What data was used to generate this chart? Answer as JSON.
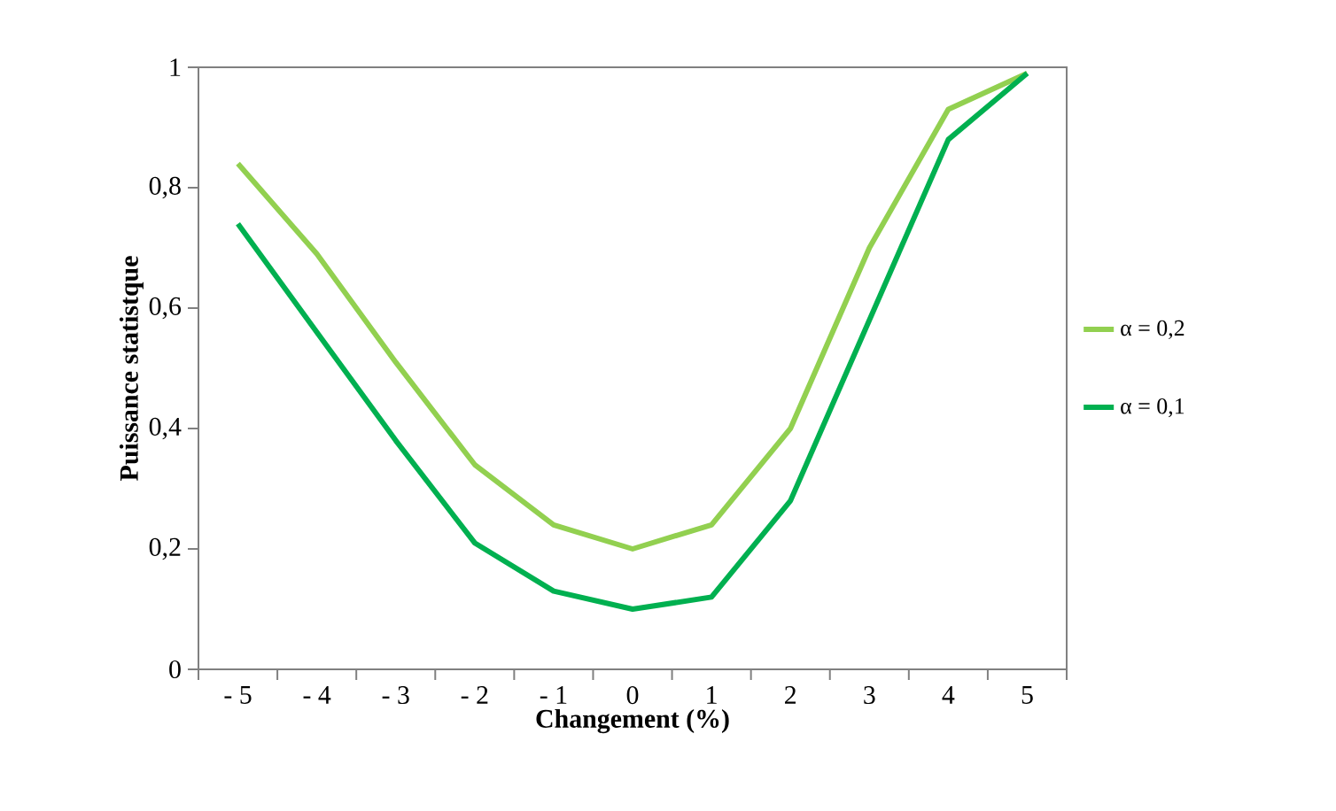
{
  "chart_data": {
    "type": "line",
    "xlabel": "Changement (%)",
    "ylabel": "Puissance statistque",
    "categories": [
      "- 5",
      "- 4",
      "- 3",
      "- 2",
      "- 1",
      "0",
      "1",
      "2",
      "3",
      "4",
      "5"
    ],
    "ylim": [
      0,
      1
    ],
    "yticks": [
      {
        "value": 0,
        "label": "0"
      },
      {
        "value": 0.2,
        "label": "0,2"
      },
      {
        "value": 0.4,
        "label": "0,4"
      },
      {
        "value": 0.6,
        "label": "0,6"
      },
      {
        "value": 0.8,
        "label": "0,8"
      },
      {
        "value": 1,
        "label": "1"
      }
    ],
    "grid": false,
    "legend": "right",
    "marker": "none",
    "line_style": "solid",
    "series": [
      {
        "name": "α = 0,2",
        "color": "#92d050",
        "values": [
          0.84,
          0.69,
          0.51,
          0.34,
          0.24,
          0.2,
          0.24,
          0.4,
          0.7,
          0.93,
          0.99
        ]
      },
      {
        "name": "α = 0,1",
        "color": "#00b050",
        "values": [
          0.74,
          0.56,
          0.38,
          0.21,
          0.13,
          0.1,
          0.12,
          0.28,
          0.58,
          0.88,
          0.99
        ]
      }
    ]
  }
}
